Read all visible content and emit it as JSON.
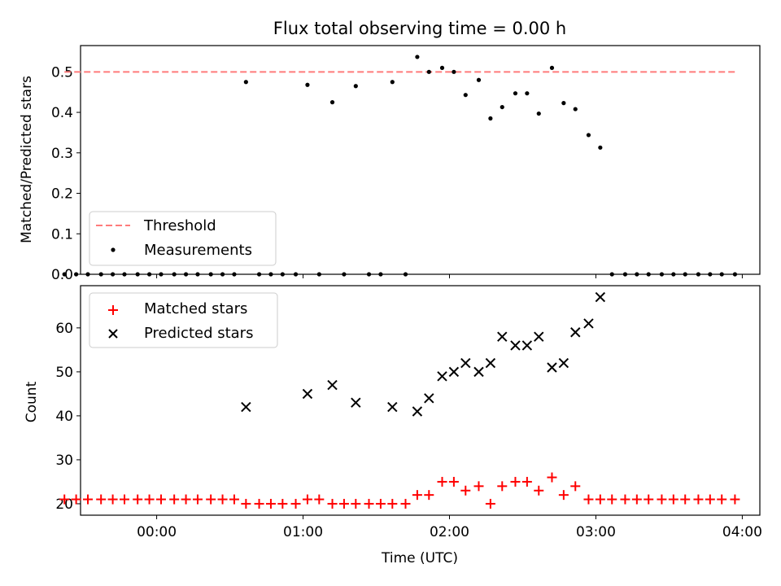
{
  "chart_data": [
    {
      "type": "scatter",
      "title": "Flux total observing time = 0.00 h",
      "xlabel": "",
      "ylabel": "Matched/Predicted stars",
      "x_ticks": [
        "00:00",
        "01:00",
        "02:00",
        "03:00",
        "04:00"
      ],
      "xlim_hours": [
        -0.52,
        4.12
      ],
      "ylim": [
        0,
        0.565
      ],
      "y_ticks": [
        "0.0",
        "0.1",
        "0.2",
        "0.3",
        "0.4",
        "0.5"
      ],
      "grid": false,
      "legend_position": "bottom-left",
      "threshold": {
        "name": "Threshold",
        "value": 0.5,
        "x_range_hours": [
          -0.63,
          3.95
        ],
        "color": "#ff7b7b"
      },
      "series": [
        {
          "name": "Measurements",
          "color": "#000000",
          "x_hours": [
            -0.63,
            -0.55,
            -0.47,
            -0.38,
            -0.3,
            -0.22,
            -0.13,
            -0.05,
            0.03,
            0.12,
            0.2,
            0.28,
            0.37,
            0.45,
            0.53,
            0.61,
            0.7,
            0.78,
            0.86,
            0.95,
            1.03,
            1.11,
            1.2,
            1.28,
            1.36,
            1.45,
            1.53,
            1.61,
            1.7,
            1.78,
            1.86,
            1.95,
            2.03,
            2.11,
            2.2,
            2.28,
            2.36,
            2.45,
            2.53,
            2.61,
            2.7,
            2.78,
            2.86,
            2.95,
            3.03,
            3.11,
            3.2,
            3.28,
            3.36,
            3.45,
            3.53,
            3.61,
            3.7,
            3.78,
            3.86,
            3.95
          ],
          "y": [
            0,
            0,
            0,
            0,
            0,
            0,
            0,
            0,
            0,
            0,
            0,
            0,
            0,
            0,
            0,
            0.475,
            0,
            0,
            0,
            0,
            0.468,
            0,
            0.425,
            0,
            0.465,
            0,
            0,
            0.475,
            0,
            0.537,
            0.5,
            0.51,
            0.5,
            0.443,
            0.48,
            0.385,
            0.413,
            0.447,
            0.447,
            0.397,
            0.51,
            0.423,
            0.408,
            0.344,
            0.313,
            0,
            0,
            0,
            0,
            0,
            0,
            0,
            0,
            0,
            0,
            0
          ]
        }
      ]
    },
    {
      "type": "scatter",
      "title": "",
      "xlabel": "Time (UTC)",
      "ylabel": "Count",
      "x_ticks": [
        "00:00",
        "01:00",
        "02:00",
        "03:00",
        "04:00"
      ],
      "xlim_hours": [
        -0.52,
        4.12
      ],
      "ylim": [
        17.4,
        69.6
      ],
      "y_ticks": [
        "20",
        "30",
        "40",
        "50",
        "60"
      ],
      "grid": false,
      "legend_position": "top-left",
      "series": [
        {
          "name": "Matched stars",
          "marker": "plus",
          "color": "#ff0000",
          "x_hours": [
            -0.63,
            -0.55,
            -0.47,
            -0.38,
            -0.3,
            -0.22,
            -0.13,
            -0.05,
            0.03,
            0.12,
            0.2,
            0.28,
            0.37,
            0.45,
            0.53,
            0.61,
            0.7,
            0.78,
            0.86,
            0.95,
            1.03,
            1.11,
            1.2,
            1.28,
            1.36,
            1.45,
            1.53,
            1.61,
            1.7,
            1.78,
            1.86,
            1.95,
            2.03,
            2.11,
            2.2,
            2.28,
            2.36,
            2.45,
            2.53,
            2.61,
            2.7,
            2.78,
            2.86,
            2.95,
            3.03,
            3.11,
            3.2,
            3.28,
            3.36,
            3.45,
            3.53,
            3.61,
            3.7,
            3.78,
            3.86,
            3.95
          ],
          "y": [
            21,
            21,
            21,
            21,
            21,
            21,
            21,
            21,
            21,
            21,
            21,
            21,
            21,
            21,
            21,
            20,
            20,
            20,
            20,
            20,
            21,
            21,
            20,
            20,
            20,
            20,
            20,
            20,
            20,
            22,
            22,
            25,
            25,
            23,
            24,
            20,
            24,
            25,
            25,
            23,
            26,
            22,
            24,
            21,
            21,
            21,
            21,
            21,
            21,
            21,
            21,
            21,
            21,
            21,
            21,
            21
          ]
        },
        {
          "name": "Predicted stars",
          "marker": "x",
          "color": "#000000",
          "x_hours": [
            0.61,
            1.03,
            1.2,
            1.36,
            1.61,
            1.78,
            1.86,
            1.95,
            2.03,
            2.11,
            2.2,
            2.28,
            2.36,
            2.45,
            2.53,
            2.61,
            2.7,
            2.78,
            2.86,
            2.95,
            3.03
          ],
          "y": [
            42,
            45,
            47,
            43,
            42,
            41,
            44,
            49,
            50,
            52,
            50,
            52,
            58,
            56,
            56,
            58,
            51,
            52,
            59,
            61,
            67
          ]
        }
      ]
    }
  ]
}
